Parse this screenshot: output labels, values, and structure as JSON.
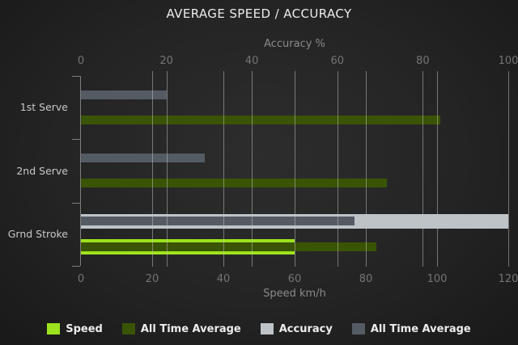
{
  "chart_data": {
    "type": "bar",
    "orientation": "horizontal",
    "title": "AVERAGE SPEED / ACCURACY",
    "categories": [
      "1st Serve",
      "2nd Serve",
      "Grnd Stroke"
    ],
    "axes": {
      "top": {
        "label": "Accuracy %",
        "min": 0,
        "max": 100,
        "ticks": [
          0,
          20,
          40,
          60,
          80,
          100
        ]
      },
      "bottom": {
        "label": "Speed km/h",
        "min": 0,
        "max": 120,
        "ticks": [
          0,
          20,
          40,
          60,
          80,
          100,
          120
        ]
      }
    },
    "series": [
      {
        "name": "Speed",
        "axis": "bottom",
        "color": "#9de31d",
        "values": [
          0,
          0,
          60
        ]
      },
      {
        "name": "All Time Average",
        "axis": "bottom",
        "color": "#3a5405",
        "values": [
          101,
          86,
          83
        ]
      },
      {
        "name": "Accuracy",
        "axis": "top",
        "color": "#bdc3c6",
        "values": [
          0,
          0,
          100
        ]
      },
      {
        "name": "All Time Average",
        "axis": "top",
        "color": "#545b63",
        "values": [
          20,
          29,
          64
        ]
      }
    ],
    "legend": [
      {
        "label": "Speed",
        "color": "#9de31d"
      },
      {
        "label": "All Time Average",
        "color": "#3a5405"
      },
      {
        "label": "Accuracy",
        "color": "#bdc3c6"
      },
      {
        "label": "All Time Average",
        "color": "#545b63"
      }
    ],
    "legend_position": "bottom",
    "grid": true,
    "colors": {
      "background": "#242424",
      "grid_line": "#858585",
      "title_text": "#ececec",
      "axis_text": "#8a8a8a",
      "tick_text": "#757575",
      "category_text": "#c8c8c8",
      "legend_text": "#ececec"
    }
  }
}
